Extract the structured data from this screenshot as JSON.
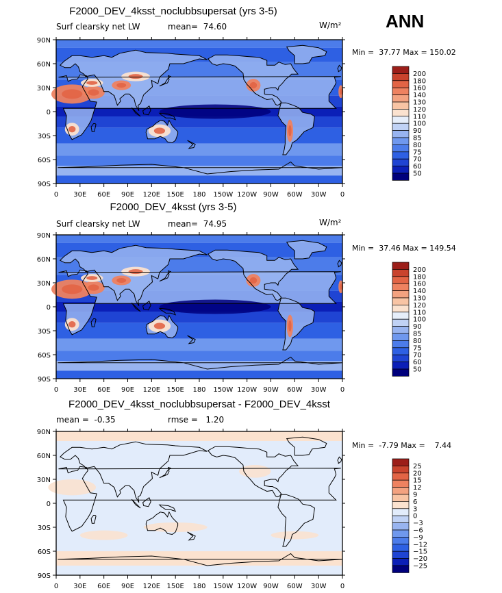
{
  "season": "ANN",
  "palette": {
    "main": [
      "#00007c",
      "#0b1fb7",
      "#1f44d3",
      "#2e60e3",
      "#4c7cea",
      "#6f98ee",
      "#98b4f0",
      "#c0d2f5",
      "#e6eefa",
      "#fbe2cf",
      "#f8c4a4",
      "#f3a280",
      "#ee8260",
      "#e26445",
      "#c9432d",
      "#9c1e19"
    ],
    "diff": [
      "#00007c",
      "#0b1fb7",
      "#1f44d3",
      "#2e60e3",
      "#4c7cea",
      "#6f98ee",
      "#98b4f0",
      "#c0d2f5",
      "#e2ecfb",
      "#fbe2cf",
      "#f8c4a4",
      "#f3a280",
      "#ee8260",
      "#e26445",
      "#c9432d",
      "#9c1e19"
    ]
  },
  "chart_data": [
    {
      "type": "heatmap",
      "title": "F2000_DEV_4ksst_noclubbsupersat (yrs 3-5)",
      "variable": "Surf clearsky net LW",
      "mean_label": "mean=",
      "mean": "74.60",
      "units": "W/m²",
      "min_label": "Min =",
      "min": "37.77",
      "max_label": "Max =",
      "max": "150.02",
      "levels": [
        "200",
        "180",
        "160",
        "140",
        "130",
        "120",
        "110",
        "100",
        "90",
        "85",
        "80",
        "75",
        "70",
        "60",
        "50"
      ],
      "x_ticks": [
        "0",
        "30E",
        "60E",
        "90E",
        "120E",
        "150E",
        "180",
        "150W",
        "120W",
        "90W",
        "60W",
        "30W",
        "0"
      ],
      "y_ticks": [
        "90N",
        "60N",
        "30N",
        "0",
        "30S",
        "60S",
        "90S"
      ],
      "xlim": [
        0,
        360
      ],
      "ylim": [
        -90,
        90
      ],
      "palette": "main"
    },
    {
      "type": "heatmap",
      "title": "F2000_DEV_4ksst (yrs 3-5)",
      "variable": "Surf clearsky net LW",
      "mean_label": "mean=",
      "mean": "74.95",
      "units": "W/m²",
      "min_label": "Min =",
      "min": "37.46",
      "max_label": "Max =",
      "max": "149.54",
      "levels": [
        "200",
        "180",
        "160",
        "140",
        "130",
        "120",
        "110",
        "100",
        "90",
        "85",
        "80",
        "75",
        "70",
        "60",
        "50"
      ],
      "x_ticks": [
        "0",
        "30E",
        "60E",
        "90E",
        "120E",
        "150E",
        "180",
        "150W",
        "120W",
        "90W",
        "60W",
        "30W",
        "0"
      ],
      "y_ticks": [
        "90N",
        "60N",
        "30N",
        "0",
        "30S",
        "60S",
        "90S"
      ],
      "xlim": [
        0,
        360
      ],
      "ylim": [
        -90,
        90
      ],
      "palette": "main"
    },
    {
      "type": "heatmap",
      "title": "F2000_DEV_4ksst_noclubbsupersat - F2000_DEV_4ksst",
      "mean_label": "mean =",
      "mean": "-0.35",
      "rmse_label": "rmse =",
      "rmse": "1.20",
      "min_label": "Min =",
      "min": "-7.79",
      "max_label": "Max =",
      "max": "7.44",
      "levels": [
        "25",
        "20",
        "15",
        "12",
        "9",
        "6",
        "3",
        "0",
        "−3",
        "−6",
        "−9",
        "−12",
        "−15",
        "−20",
        "−25"
      ],
      "x_ticks": [
        "0",
        "30E",
        "60E",
        "90E",
        "120E",
        "150E",
        "180",
        "150W",
        "120W",
        "90W",
        "60W",
        "30W",
        "0"
      ],
      "y_ticks": [
        "90N",
        "60N",
        "30N",
        "0",
        "30S",
        "60S",
        "90S"
      ],
      "xlim": [
        0,
        360
      ],
      "ylim": [
        -90,
        90
      ],
      "palette": "diff"
    }
  ]
}
